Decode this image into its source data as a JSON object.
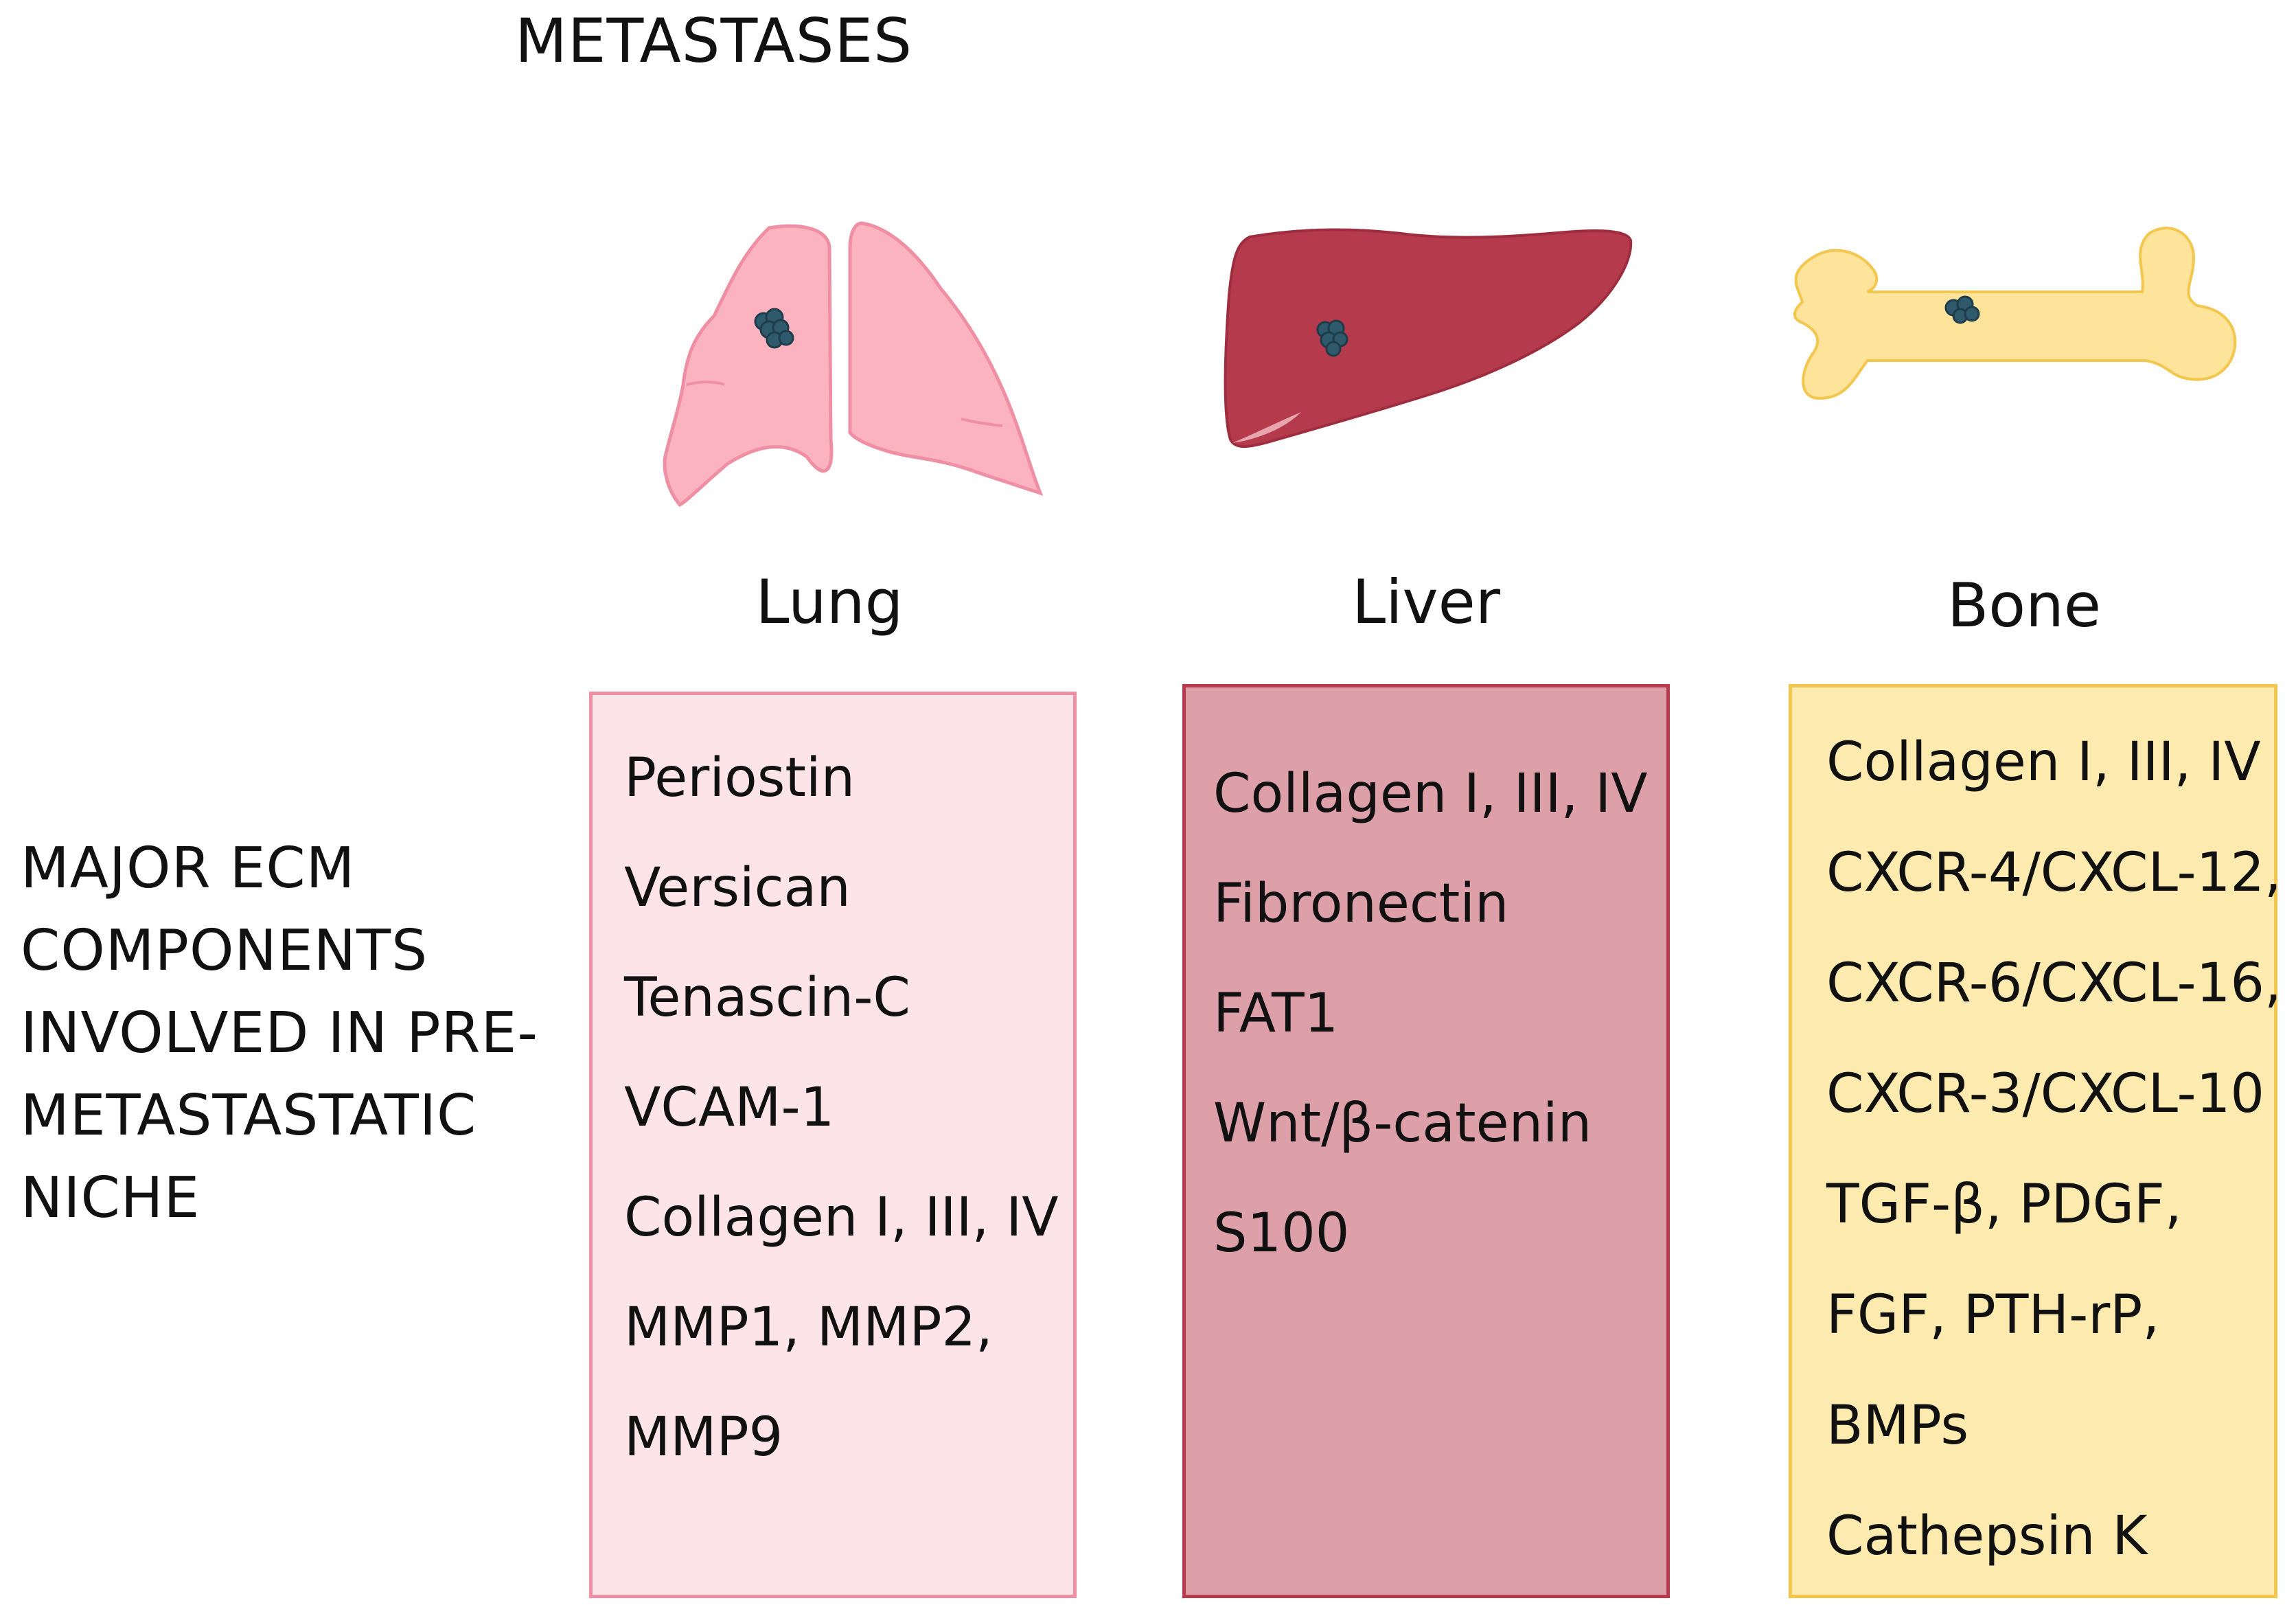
{
  "title": "METASTASES",
  "organs": {
    "lung": {
      "label": "Lung",
      "components": [
        "Periostin",
        "Versican",
        "Tenascin-C",
        "VCAM-1",
        "Collagen I, III, IV",
        "MMP1, MMP2,",
        "MMP9"
      ]
    },
    "liver": {
      "label": "Liver",
      "components": [
        "Collagen I, III, IV",
        "Fibronectin",
        "FAT1",
        "Wnt/β-catenin",
        "S100"
      ]
    },
    "bone": {
      "label": "Bone",
      "components": [
        "Collagen I, III, IV",
        "CXCR-4/CXCL-12,",
        "CXCR-6/CXCL-16,",
        "CXCR-3/CXCL-10",
        "TGF-β, PDGF,",
        "FGF, PTH-rP,",
        "BMPs",
        "Cathepsin K"
      ]
    }
  },
  "side_label": [
    "MAJOR ECM",
    "COMPONENTS",
    "INVOLVED IN PRE-",
    "METASTASTATIC",
    "NICHE"
  ],
  "colors": {
    "lung_fill": "#fbb3bf",
    "lung_stroke": "#ef8fa3",
    "liver_fill": "#b43a4c",
    "liver_stroke": "#9e2e3f",
    "bone_fill": "#fde49a",
    "bone_stroke": "#f3c64d",
    "tumor": "#2f5a6b"
  }
}
